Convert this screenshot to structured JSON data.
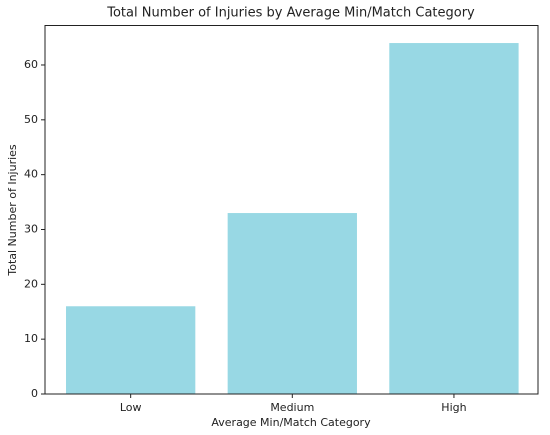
{
  "chart_data": {
    "type": "bar",
    "title": "Total Number of Injuries by Average Min/Match Category",
    "x_label": "Average Min/Match Category",
    "y_label": "Total Number of Injuries",
    "categories": [
      "Low",
      "Medium",
      "High"
    ],
    "values": [
      16,
      33,
      64
    ],
    "color": "#98d8e4",
    "ylim": [
      0,
      67.2
    ],
    "yticks": [
      0,
      10,
      20,
      30,
      40,
      50,
      60
    ],
    "grid": false
  }
}
